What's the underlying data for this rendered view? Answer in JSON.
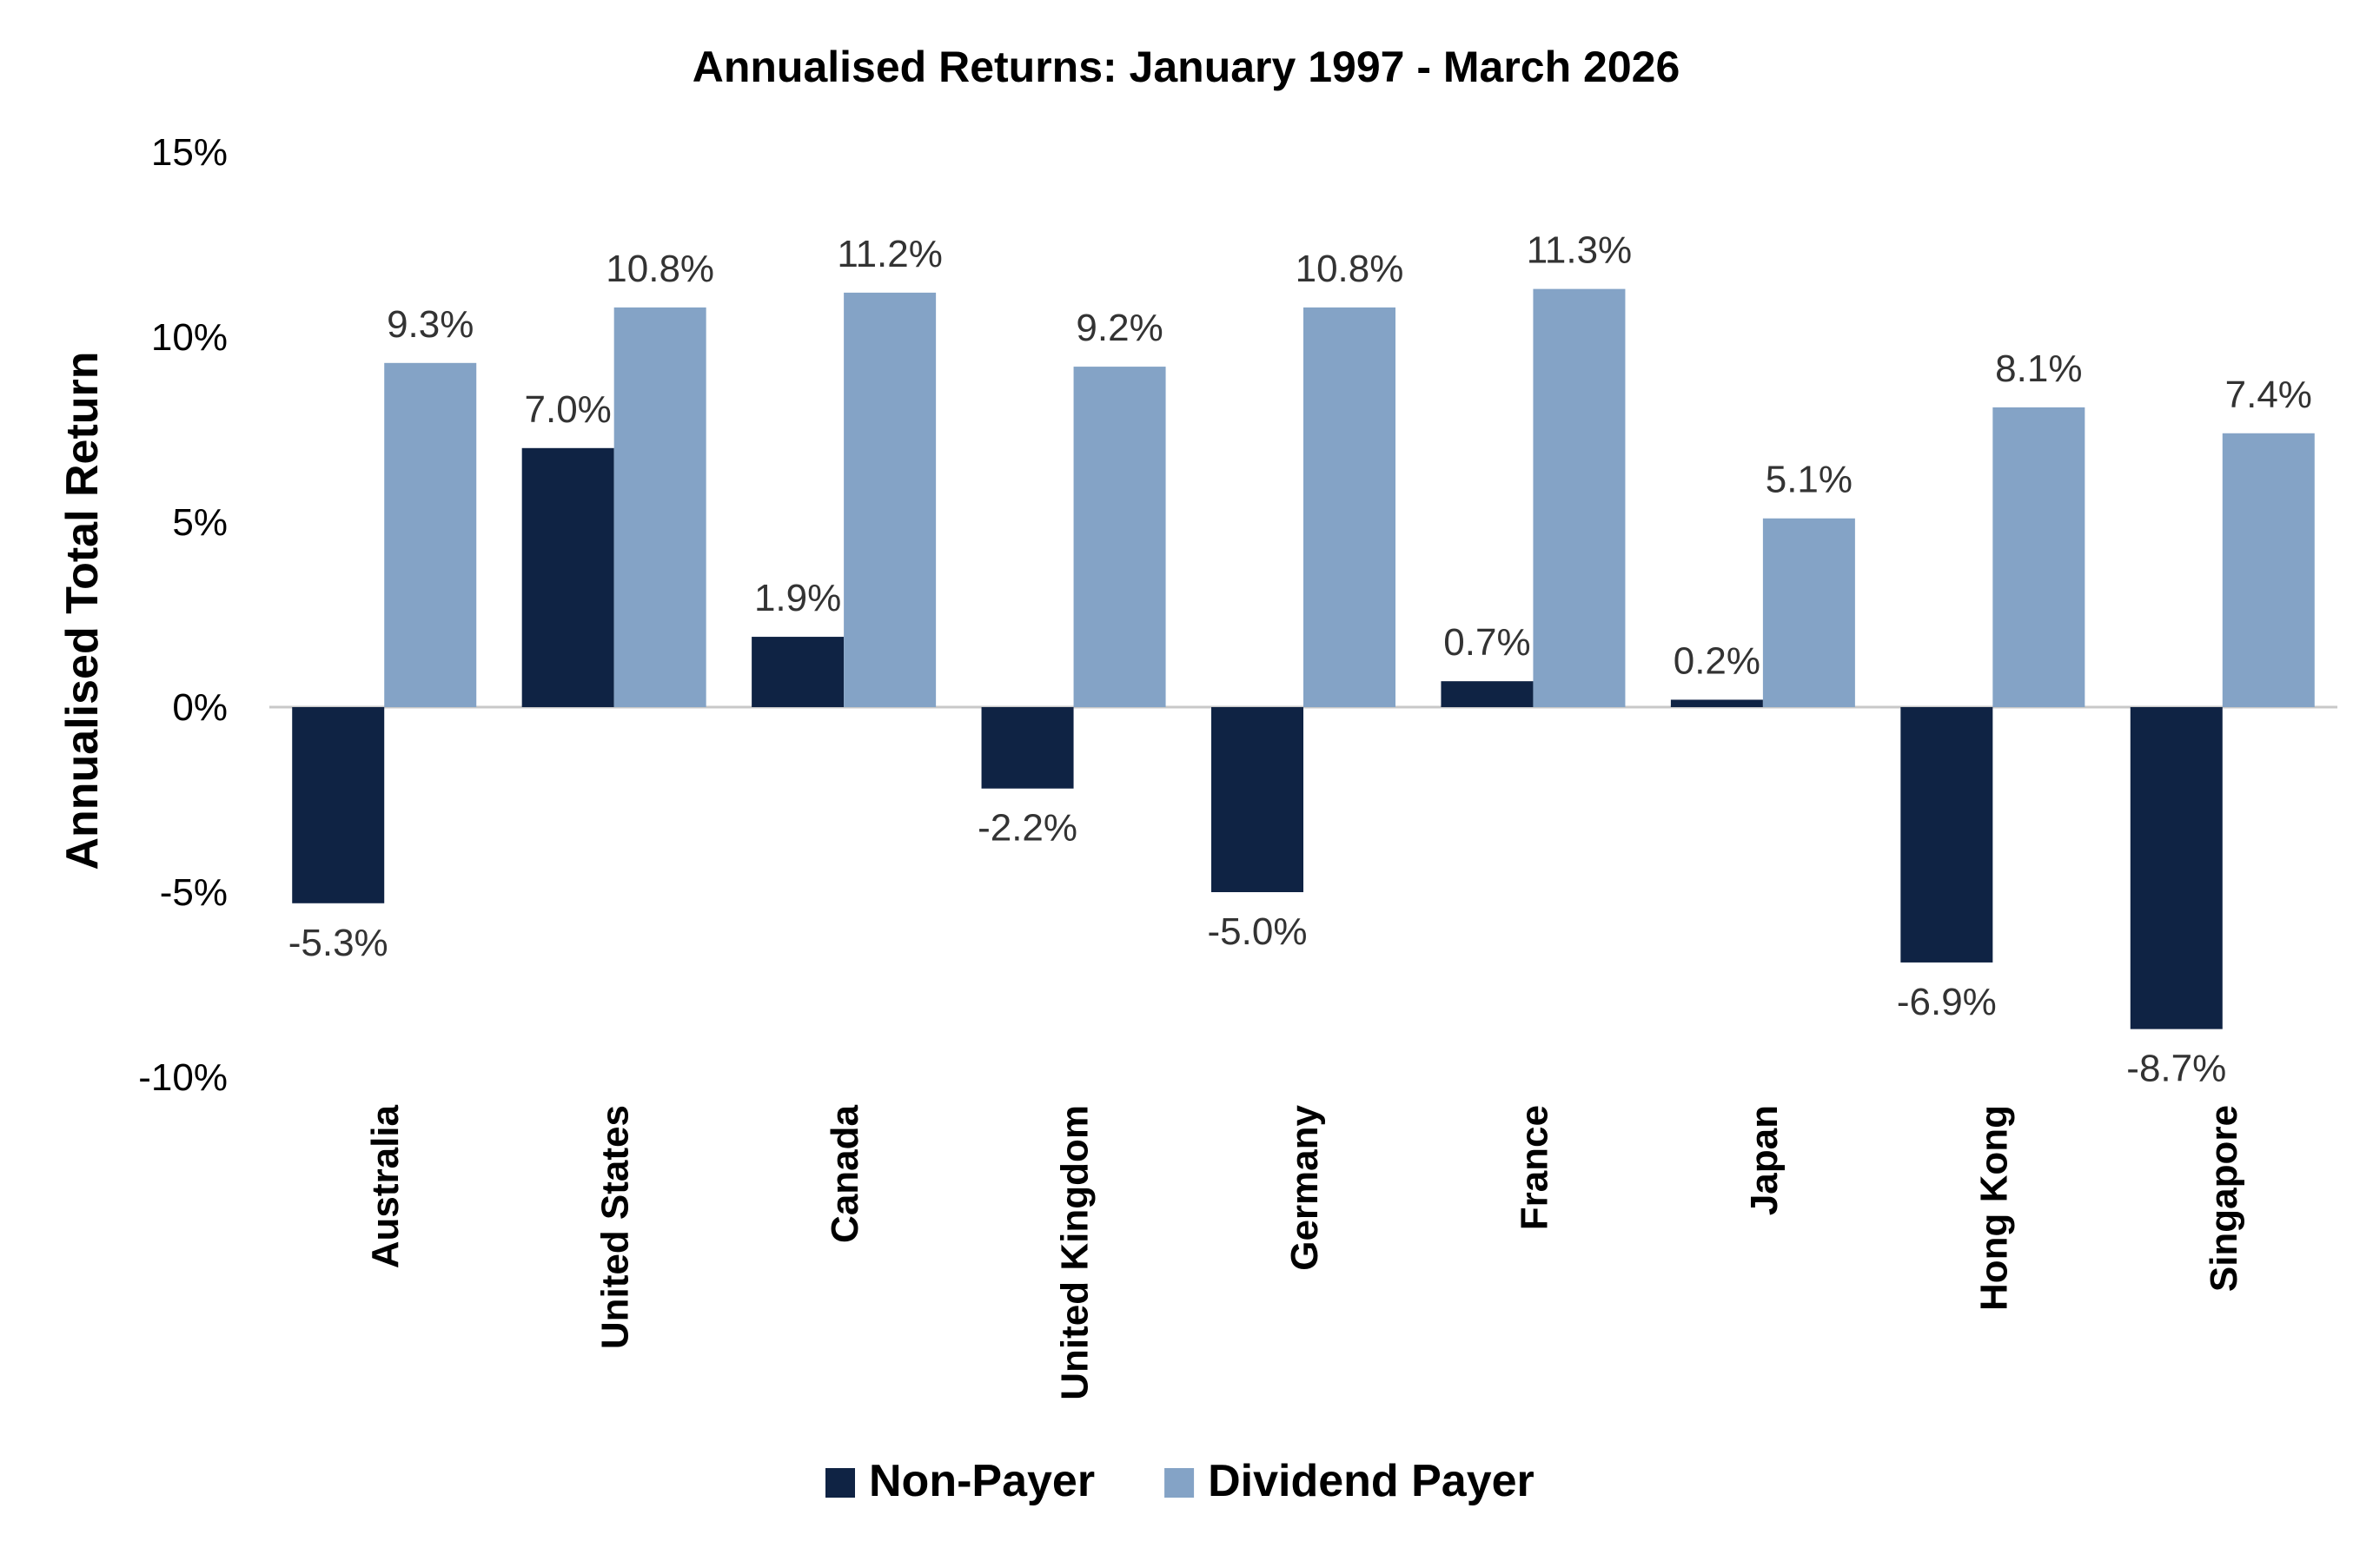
{
  "chart_data": {
    "type": "bar",
    "title": "Annualised Returns: January 1997 - March 2026",
    "xlabel": "",
    "ylabel": "Annualised Total Return",
    "ylim": [
      -10,
      15
    ],
    "yticks": [
      15,
      10,
      5,
      0,
      -5,
      -10
    ],
    "ytick_labels": [
      "15%",
      "10%",
      "5%",
      "0%",
      "-5%",
      "-10%"
    ],
    "categories": [
      "Australia",
      "United States",
      "Canada",
      "United Kingdom",
      "Germany",
      "France",
      "Japan",
      "Hong Kong",
      "Singapore"
    ],
    "series": [
      {
        "name": "Non-Payer",
        "color": "#0f2344",
        "values": [
          -5.3,
          7.0,
          1.9,
          -2.2,
          -5.0,
          0.7,
          0.2,
          -6.9,
          -8.7
        ],
        "labels": [
          "-5.3%",
          "7.0%",
          "1.9%",
          "-2.2%",
          "-5.0%",
          "0.7%",
          "0.2%",
          "-6.9%",
          "-8.7%"
        ]
      },
      {
        "name": "Dividend Payer",
        "color": "#84a3c6",
        "values": [
          9.3,
          10.8,
          11.2,
          9.2,
          10.8,
          11.3,
          5.1,
          8.1,
          7.4
        ],
        "labels": [
          "9.3%",
          "10.8%",
          "11.2%",
          "9.2%",
          "10.8%",
          "11.3%",
          "5.1%",
          "8.1%",
          "7.4%"
        ]
      }
    ],
    "grid": false,
    "legend_position": "bottom",
    "axis_color": "#c8c8c8"
  }
}
